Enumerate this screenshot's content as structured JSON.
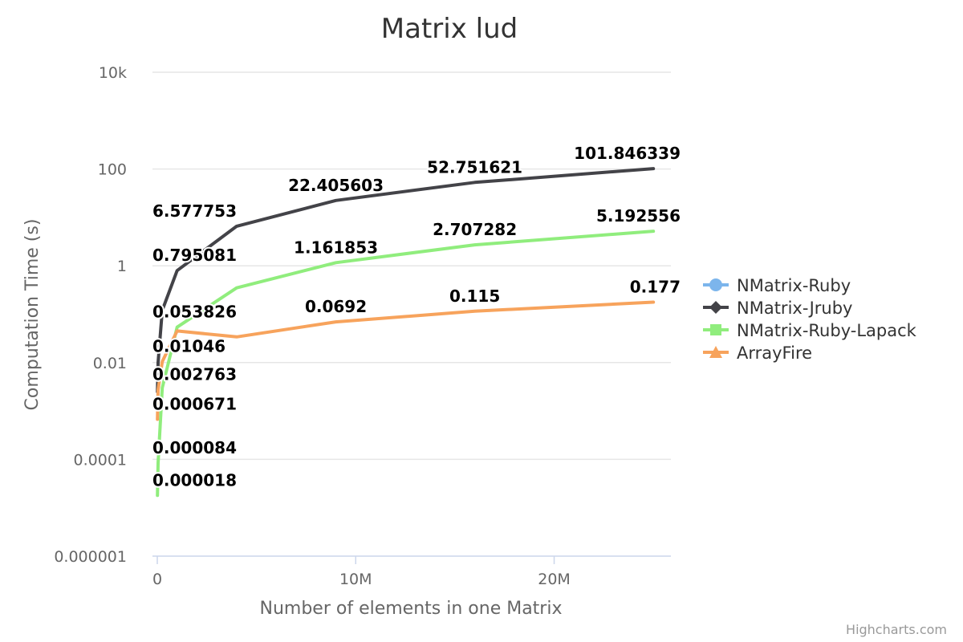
{
  "chart_data": {
    "type": "line",
    "title": "Matrix lud",
    "xlabel": "Number of elements in one Matrix",
    "ylabel": "Computation Time (s)",
    "y_scale": "log",
    "ylim": [
      1e-06,
      10000
    ],
    "xlim": [
      0,
      25600000
    ],
    "x_ticks": [
      {
        "value": 0,
        "label": "0"
      },
      {
        "value": 10000000,
        "label": "10M"
      },
      {
        "value": 20000000,
        "label": "20M"
      }
    ],
    "y_ticks": [
      {
        "value": 10000,
        "label": "10k"
      },
      {
        "value": 100,
        "label": "100"
      },
      {
        "value": 1,
        "label": "1"
      },
      {
        "value": 0.01,
        "label": "0.01"
      },
      {
        "value": 0.0001,
        "label": "0.0001"
      },
      {
        "value": 1e-06,
        "label": "0.000001"
      }
    ],
    "grid": true,
    "legend_position": "right",
    "series": [
      {
        "name": "NMatrix-Ruby",
        "color": "#7cb5ec",
        "marker": "circle",
        "x": [],
        "y": []
      },
      {
        "name": "NMatrix-Jruby",
        "color": "#434348",
        "marker": "diamond",
        "x": [
          10000,
          40000,
          250000,
          1000000,
          4000000,
          9000000,
          16000000,
          25000000
        ],
        "y": [
          0.0025,
          0.01,
          0.12,
          0.795081,
          6.577753,
          22.405603,
          52.751621,
          101.846339
        ],
        "labels": [
          null,
          null,
          null,
          "0.795081",
          "6.577753",
          "22.405603",
          "52.751621",
          "101.846339"
        ]
      },
      {
        "name": "NMatrix-Ruby-Lapack",
        "color": "#90ed7d",
        "marker": "square",
        "x": [
          10000,
          40000,
          250000,
          1000000,
          4000000,
          9000000,
          16000000,
          25000000
        ],
        "y": [
          1.8e-05,
          8.4e-05,
          0.003,
          0.053826,
          0.35,
          1.161853,
          2.707282,
          5.192556
        ],
        "labels": [
          "0.000018",
          "0.000084",
          null,
          "0.053826",
          null,
          "1.161853",
          "2.707282",
          "5.192556"
        ]
      },
      {
        "name": "ArrayFire",
        "color": "#f7a35c",
        "marker": "triangle",
        "x": [
          10000,
          40000,
          250000,
          1000000,
          4000000,
          9000000,
          16000000,
          25000000
        ],
        "y": [
          0.000671,
          0.002763,
          0.01046,
          0.045,
          0.034,
          0.0692,
          0.115,
          0.177
        ],
        "labels": [
          "0.000671",
          "0.002763",
          "0.01046",
          null,
          null,
          "0.0692",
          "0.115",
          "0.177"
        ]
      }
    ]
  },
  "credits": "Highcharts.com"
}
